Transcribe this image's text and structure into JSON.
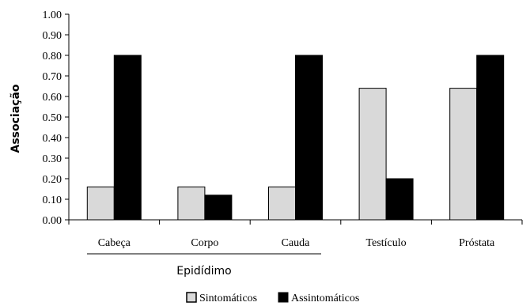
{
  "chart_data": {
    "type": "bar",
    "ylabel": "Associação",
    "ylim": [
      0,
      1
    ],
    "yticks": [
      "0.00",
      "0.10",
      "0.20",
      "0.30",
      "0.40",
      "0.50",
      "0.60",
      "0.70",
      "0.80",
      "0.90",
      "1.00"
    ],
    "categories": [
      "Cabeça",
      "Corpo",
      "Cauda",
      "Testículo",
      "Próstata"
    ],
    "group_label": "Epidídimo",
    "series": [
      {
        "name": "Sintomáticos",
        "color": "#d9d9d9",
        "values": [
          0.16,
          0.16,
          0.16,
          0.64,
          0.64
        ]
      },
      {
        "name": "Assintomáticos",
        "color": "#000000",
        "values": [
          0.8,
          0.12,
          0.8,
          0.2,
          0.8
        ]
      }
    ],
    "legend_position": "bottom-center"
  }
}
